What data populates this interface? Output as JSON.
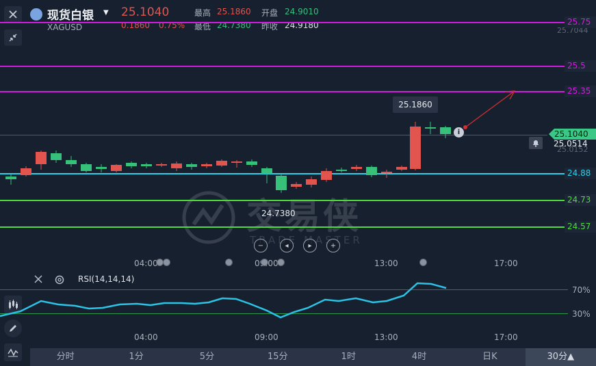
{
  "header": {
    "title": "现货白银",
    "symbol": "XAGUSD",
    "price": "25.1040",
    "change": "0.1860",
    "change_pct": "0.75%",
    "high_label": "最高",
    "high_value": "25.1860",
    "low_label": "最低",
    "low_value": "24.7380",
    "open_label": "开盘",
    "open_value": "24.9010",
    "prev_label": "昨收",
    "prev_value": "24.9180"
  },
  "price_axis": {
    "top_partial": "25.7044",
    "current_price": "25.1040",
    "alert_price": "25.0514",
    "low_partial": "25.0152"
  },
  "levels": [
    {
      "label": "25.75",
      "color": "#d21de0"
    },
    {
      "label": "25.5",
      "color": "#d21de0"
    },
    {
      "label": "25.35",
      "color": "#d21de0"
    },
    {
      "label": "24.88",
      "color": "#28d1ea"
    },
    {
      "label": "24.73",
      "color": "#4ddc3a"
    },
    {
      "label": "24.57",
      "color": "#4ddc3a"
    }
  ],
  "annotations": {
    "high_marker": "25.1860",
    "low_marker": "24.7380",
    "watermark_cn": "交易侠",
    "watermark_en": "TRADE MASTER"
  },
  "time_axis": [
    "04:00",
    "09:00",
    "13:00",
    "17:00"
  ],
  "rsi": {
    "label": "RSI(14,14,14)",
    "level_high": "70%",
    "level_low": "30%"
  },
  "tabs": [
    {
      "label": "分时"
    },
    {
      "label": "1分"
    },
    {
      "label": "5分"
    },
    {
      "label": "15分"
    },
    {
      "label": "1时"
    },
    {
      "label": "4时"
    },
    {
      "label": "日K"
    },
    {
      "label": "30分▲"
    }
  ],
  "icons": {
    "close": "close-icon",
    "collapse": "collapse-arrows-icon",
    "chart_type": "candlestick-icon",
    "draw": "pencil-icon",
    "indicator": "wave-indicator-icon",
    "alert": "bell-icon",
    "settings": "gear-icon"
  },
  "colors": {
    "up": "#e2544e",
    "down": "#36c07a",
    "background": "#17202f"
  }
}
